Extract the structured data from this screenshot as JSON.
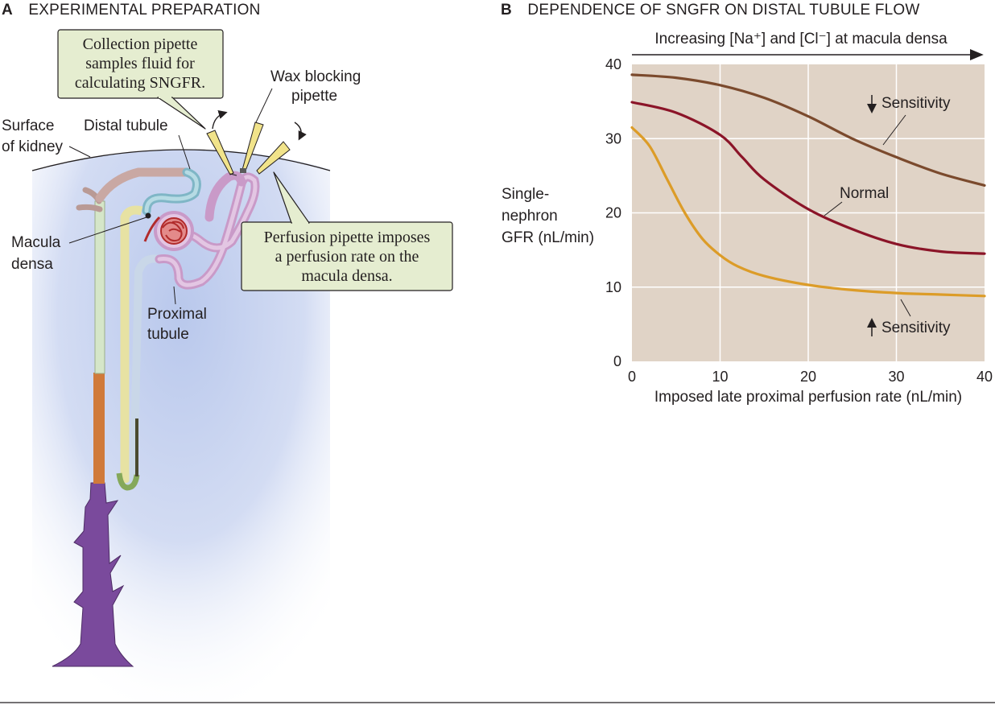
{
  "panel_a": {
    "letter": "A",
    "title": "EXPERIMENTAL PREPARATION",
    "callout_collection": [
      "Collection pipette",
      "samples fluid for",
      "calculating SNGFR."
    ],
    "callout_perfusion": [
      "Perfusion pipette imposes",
      "a perfusion rate on the",
      "macula densa."
    ],
    "label_wax": [
      "Wax blocking",
      "pipette"
    ],
    "label_surface": [
      "Surface",
      "of kidney"
    ],
    "label_distal": "Distal tubule",
    "label_macula": [
      "Macula",
      "densa"
    ],
    "label_proximal": [
      "Proximal",
      "tubule"
    ]
  },
  "panel_b": {
    "letter": "B",
    "title": "DEPENDENCE OF SNGFR ON DISTAL TUBULE FLOW",
    "top_arrow_label": "Increasing [Na⁺] and [Cl⁻] at macula densa",
    "ylabel": [
      "Single-",
      "nephron",
      "GFR (nL/min)"
    ],
    "xlabel": "Imposed late proximal perfusion rate (nL/min)",
    "annotation_low": "Sensitivity",
    "annotation_normal": "Normal",
    "annotation_high": "Sensitivity"
  },
  "colors": {
    "plot_bg": "#e0d3c6",
    "decreased_sensitivity": "#7b4a2d",
    "normal": "#8b1428",
    "increased_sensitivity": "#dc9c28",
    "callout_fill": "#e5edd0"
  },
  "chart_data": {
    "type": "line",
    "xlim": [
      0,
      40
    ],
    "ylim": [
      0,
      40
    ],
    "xticks": [
      0,
      10,
      20,
      30,
      40
    ],
    "yticks": [
      0,
      10,
      20,
      30,
      40
    ],
    "grid": true,
    "series": [
      {
        "name": "↓ Sensitivity",
        "color": "#7b4a2d",
        "x": [
          0,
          5,
          10,
          15,
          20,
          25,
          30,
          35,
          40
        ],
        "y": [
          38.6,
          38.2,
          37.2,
          35.5,
          33.0,
          30.0,
          27.5,
          25.3,
          23.7
        ]
      },
      {
        "name": "Normal",
        "color": "#8b1428",
        "x": [
          0,
          5,
          10,
          12.5,
          15,
          20,
          25,
          30,
          35,
          40
        ],
        "y": [
          34.9,
          33.5,
          30.5,
          27.5,
          24.5,
          20.5,
          17.8,
          15.8,
          14.8,
          14.5
        ]
      },
      {
        "name": "↑ Sensitivity",
        "color": "#dc9c28",
        "x": [
          0,
          2,
          4,
          6,
          8,
          10,
          12,
          15,
          20,
          25,
          30,
          35,
          40
        ],
        "y": [
          31.5,
          29.0,
          24.5,
          20.0,
          16.5,
          14.3,
          12.8,
          11.5,
          10.3,
          9.6,
          9.2,
          9.0,
          8.8
        ]
      }
    ]
  }
}
